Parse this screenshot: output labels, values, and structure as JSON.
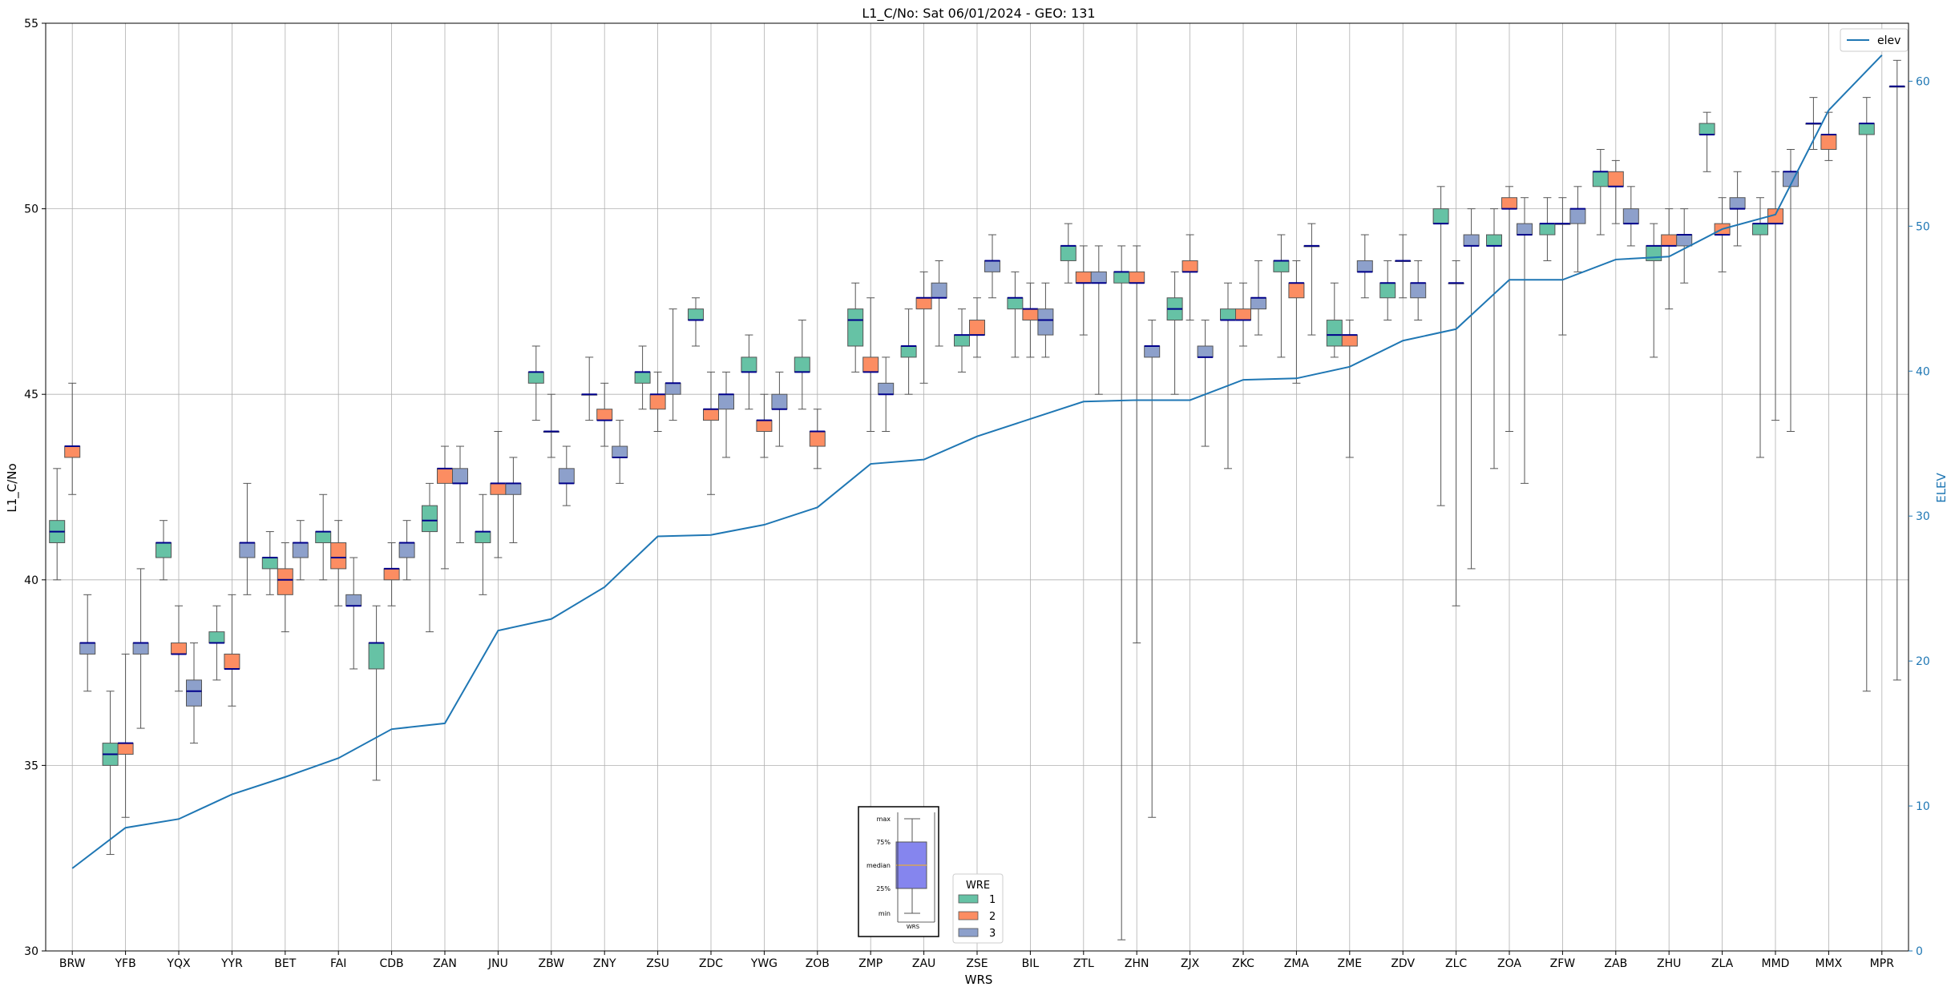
{
  "chart_data": {
    "type": "box",
    "title": "L1_C/No: Sat 06/01/2024 - GEO: 131",
    "xlabel": "WRS",
    "ylabel": "L1_C/No",
    "y2label": "ELEV",
    "ylim": [
      30,
      55
    ],
    "y2lim": [
      0,
      64
    ],
    "yticks": [
      30,
      35,
      40,
      45,
      50,
      55
    ],
    "y2ticks": [
      0,
      10,
      20,
      30,
      40,
      50,
      60
    ],
    "grid": true,
    "categories": [
      "BRW",
      "YFB",
      "YQX",
      "YYR",
      "BET",
      "FAI",
      "CDB",
      "ZAN",
      "JNU",
      "ZBW",
      "ZNY",
      "ZSU",
      "ZDC",
      "YWG",
      "ZOB",
      "ZMP",
      "ZAU",
      "ZSE",
      "BIL",
      "ZTL",
      "ZHN",
      "ZJX",
      "ZKC",
      "ZMA",
      "ZME",
      "ZDV",
      "ZLC",
      "ZOA",
      "ZFW",
      "ZAB",
      "ZHU",
      "ZLA",
      "MMD",
      "MMX",
      "MPR"
    ],
    "wre_colors": {
      "1": "#66c2a5",
      "2": "#fc8d62",
      "3": "#8da0cb"
    },
    "box_edge_color": "#555555",
    "median_color": "#00008b",
    "elev_color": "#1f77b4",
    "legend_elev": {
      "label": "elev",
      "position": "upper right"
    },
    "legend_wre": {
      "title": "WRE",
      "entries": [
        "1",
        "2",
        "3"
      ],
      "position": "lower center"
    },
    "key_box": {
      "labels": [
        "max",
        "75%",
        "median",
        "25%",
        "min"
      ],
      "xlabel": "WRS"
    },
    "boxes": [
      {
        "station": "BRW",
        "wre": "1",
        "min": 40,
        "q1": 41,
        "median": 41.3,
        "q3": 41.6,
        "max": 43
      },
      {
        "station": "BRW",
        "wre": "2",
        "min": 42.3,
        "q1": 43.3,
        "median": 43.6,
        "q3": 43.6,
        "max": 45.3
      },
      {
        "station": "BRW",
        "wre": "3",
        "min": 37,
        "q1": 38,
        "median": 38.3,
        "q3": 38.3,
        "max": 39.6
      },
      {
        "station": "YFB",
        "wre": "1",
        "min": 32.6,
        "q1": 35,
        "median": 35.3,
        "q3": 35.6,
        "max": 37
      },
      {
        "station": "YFB",
        "wre": "2",
        "min": 33.6,
        "q1": 35.3,
        "median": 35.6,
        "q3": 35.6,
        "max": 38
      },
      {
        "station": "YFB",
        "wre": "3",
        "min": 36,
        "q1": 38,
        "median": 38.3,
        "q3": 38.3,
        "max": 40.3
      },
      {
        "station": "YQX",
        "wre": "1",
        "min": 40,
        "q1": 40.6,
        "median": 41,
        "q3": 41,
        "max": 41.6
      },
      {
        "station": "YQX",
        "wre": "2",
        "min": 37,
        "q1": 38,
        "median": 38,
        "q3": 38.3,
        "max": 39.3
      },
      {
        "station": "YQX",
        "wre": "3",
        "min": 35.6,
        "q1": 36.6,
        "median": 37,
        "q3": 37.3,
        "max": 38.3
      },
      {
        "station": "YYR",
        "wre": "1",
        "min": 37.3,
        "q1": 38.3,
        "median": 38.3,
        "q3": 38.6,
        "max": 39.3
      },
      {
        "station": "YYR",
        "wre": "2",
        "min": 36.6,
        "q1": 37.6,
        "median": 37.6,
        "q3": 38,
        "max": 39.6
      },
      {
        "station": "YYR",
        "wre": "3",
        "min": 39.6,
        "q1": 40.6,
        "median": 41,
        "q3": 41,
        "max": 42.6
      },
      {
        "station": "BET",
        "wre": "1",
        "min": 39.6,
        "q1": 40.3,
        "median": 40.6,
        "q3": 40.6,
        "max": 41.3
      },
      {
        "station": "BET",
        "wre": "2",
        "min": 38.6,
        "q1": 39.6,
        "median": 40,
        "q3": 40.3,
        "max": 41
      },
      {
        "station": "BET",
        "wre": "3",
        "min": 40,
        "q1": 40.6,
        "median": 41,
        "q3": 41,
        "max": 41.6
      },
      {
        "station": "FAI",
        "wre": "1",
        "min": 40,
        "q1": 41,
        "median": 41.3,
        "q3": 41.3,
        "max": 42.3
      },
      {
        "station": "FAI",
        "wre": "2",
        "min": 39.3,
        "q1": 40.3,
        "median": 40.6,
        "q3": 41,
        "max": 41.6
      },
      {
        "station": "FAI",
        "wre": "3",
        "min": 37.6,
        "q1": 39.3,
        "median": 39.3,
        "q3": 39.6,
        "max": 40.6
      },
      {
        "station": "CDB",
        "wre": "1",
        "min": 34.6,
        "q1": 37.6,
        "median": 38.3,
        "q3": 38.3,
        "max": 39.3
      },
      {
        "station": "CDB",
        "wre": "2",
        "min": 39.3,
        "q1": 40,
        "median": 40.3,
        "q3": 40.3,
        "max": 41
      },
      {
        "station": "CDB",
        "wre": "3",
        "min": 40,
        "q1": 40.6,
        "median": 41,
        "q3": 41,
        "max": 41.6
      },
      {
        "station": "ZAN",
        "wre": "1",
        "min": 38.6,
        "q1": 41.3,
        "median": 41.6,
        "q3": 42,
        "max": 42.6
      },
      {
        "station": "ZAN",
        "wre": "2",
        "min": 40.3,
        "q1": 42.6,
        "median": 43,
        "q3": 43,
        "max": 43.6
      },
      {
        "station": "ZAN",
        "wre": "3",
        "min": 41,
        "q1": 42.6,
        "median": 42.6,
        "q3": 43,
        "max": 43.6
      },
      {
        "station": "JNU",
        "wre": "1",
        "min": 39.6,
        "q1": 41,
        "median": 41.3,
        "q3": 41.3,
        "max": 42.3
      },
      {
        "station": "JNU",
        "wre": "2",
        "min": 40.6,
        "q1": 42.3,
        "median": 42.6,
        "q3": 42.6,
        "max": 44
      },
      {
        "station": "JNU",
        "wre": "3",
        "min": 41,
        "q1": 42.3,
        "median": 42.6,
        "q3": 42.6,
        "max": 43.3
      },
      {
        "station": "ZBW",
        "wre": "1",
        "min": 44.3,
        "q1": 45.3,
        "median": 45.6,
        "q3": 45.6,
        "max": 46.3
      },
      {
        "station": "ZBW",
        "wre": "2",
        "min": 43.3,
        "q1": 44,
        "median": 44,
        "q3": 44,
        "max": 45
      },
      {
        "station": "ZBW",
        "wre": "3",
        "min": 42,
        "q1": 42.6,
        "median": 42.6,
        "q3": 43,
        "max": 43.6
      },
      {
        "station": "ZNY",
        "wre": "1",
        "min": 44.3,
        "q1": 45,
        "median": 45,
        "q3": 45,
        "max": 46
      },
      {
        "station": "ZNY",
        "wre": "2",
        "min": 43.6,
        "q1": 44.3,
        "median": 44.3,
        "q3": 44.6,
        "max": 45.3
      },
      {
        "station": "ZNY",
        "wre": "3",
        "min": 42.6,
        "q1": 43.3,
        "median": 43.3,
        "q3": 43.6,
        "max": 44.3
      },
      {
        "station": "ZSU",
        "wre": "1",
        "min": 44.6,
        "q1": 45.3,
        "median": 45.6,
        "q3": 45.6,
        "max": 46.3
      },
      {
        "station": "ZSU",
        "wre": "2",
        "min": 44,
        "q1": 44.6,
        "median": 45,
        "q3": 45,
        "max": 45.6
      },
      {
        "station": "ZSU",
        "wre": "3",
        "min": 44.3,
        "q1": 45,
        "median": 45.3,
        "q3": 45.3,
        "max": 47.3
      },
      {
        "station": "ZDC",
        "wre": "1",
        "min": 46.3,
        "q1": 47,
        "median": 47,
        "q3": 47.3,
        "max": 47.6
      },
      {
        "station": "ZDC",
        "wre": "2",
        "min": 42.3,
        "q1": 44.3,
        "median": 44.6,
        "q3": 44.6,
        "max": 45.6
      },
      {
        "station": "ZDC",
        "wre": "3",
        "min": 43.3,
        "q1": 44.6,
        "median": 45,
        "q3": 45,
        "max": 45.6
      },
      {
        "station": "YWG",
        "wre": "1",
        "min": 44.6,
        "q1": 45.6,
        "median": 45.6,
        "q3": 46,
        "max": 46.6
      },
      {
        "station": "YWG",
        "wre": "2",
        "min": 43.3,
        "q1": 44,
        "median": 44.3,
        "q3": 44.3,
        "max": 45
      },
      {
        "station": "YWG",
        "wre": "3",
        "min": 43.6,
        "q1": 44.6,
        "median": 44.6,
        "q3": 45,
        "max": 45.6
      },
      {
        "station": "ZOB",
        "wre": "1",
        "min": 44.6,
        "q1": 45.6,
        "median": 45.6,
        "q3": 46,
        "max": 47
      },
      {
        "station": "ZOB",
        "wre": "2",
        "min": 43,
        "q1": 43.6,
        "median": 44,
        "q3": 44,
        "max": 44.6
      },
      {
        "station": "ZMP",
        "wre": "1",
        "min": 45.6,
        "q1": 46.3,
        "median": 47,
        "q3": 47.3,
        "max": 48
      },
      {
        "station": "ZMP",
        "wre": "2",
        "min": 44,
        "q1": 45.6,
        "median": 45.6,
        "q3": 46,
        "max": 47.6
      },
      {
        "station": "ZMP",
        "wre": "3",
        "min": 44,
        "q1": 45,
        "median": 45,
        "q3": 45.3,
        "max": 46
      },
      {
        "station": "ZAU",
        "wre": "1",
        "min": 45,
        "q1": 46,
        "median": 46.3,
        "q3": 46.3,
        "max": 47.3
      },
      {
        "station": "ZAU",
        "wre": "2",
        "min": 45.3,
        "q1": 47.3,
        "median": 47.6,
        "q3": 47.6,
        "max": 48.3
      },
      {
        "station": "ZAU",
        "wre": "3",
        "min": 46.3,
        "q1": 47.6,
        "median": 47.6,
        "q3": 48,
        "max": 48.6
      },
      {
        "station": "ZSE",
        "wre": "1",
        "min": 45.6,
        "q1": 46.3,
        "median": 46.6,
        "q3": 46.6,
        "max": 47.3
      },
      {
        "station": "ZSE",
        "wre": "2",
        "min": 46,
        "q1": 46.6,
        "median": 46.6,
        "q3": 47,
        "max": 47.6
      },
      {
        "station": "ZSE",
        "wre": "3",
        "min": 47.6,
        "q1": 48.3,
        "median": 48.6,
        "q3": 48.6,
        "max": 49.3
      },
      {
        "station": "BIL",
        "wre": "1",
        "min": 46,
        "q1": 47.3,
        "median": 47.6,
        "q3": 47.6,
        "max": 48.3
      },
      {
        "station": "BIL",
        "wre": "2",
        "min": 46,
        "q1": 47,
        "median": 47.3,
        "q3": 47.3,
        "max": 48
      },
      {
        "station": "BIL",
        "wre": "3",
        "min": 46,
        "q1": 46.6,
        "median": 47,
        "q3": 47.3,
        "max": 48
      },
      {
        "station": "ZTL",
        "wre": "1",
        "min": 48,
        "q1": 48.6,
        "median": 49,
        "q3": 49,
        "max": 49.6
      },
      {
        "station": "ZTL",
        "wre": "2",
        "min": 46.6,
        "q1": 48,
        "median": 48,
        "q3": 48.3,
        "max": 49
      },
      {
        "station": "ZTL",
        "wre": "3",
        "min": 45,
        "q1": 48,
        "median": 48,
        "q3": 48.3,
        "max": 49
      },
      {
        "station": "ZHN",
        "wre": "1",
        "min": 30.3,
        "q1": 48,
        "median": 48.3,
        "q3": 48.3,
        "max": 49
      },
      {
        "station": "ZHN",
        "wre": "2",
        "min": 38.3,
        "q1": 48,
        "median": 48,
        "q3": 48.3,
        "max": 49
      },
      {
        "station": "ZHN",
        "wre": "3",
        "min": 33.6,
        "q1": 46,
        "median": 46.3,
        "q3": 46.3,
        "max": 47
      },
      {
        "station": "ZJX",
        "wre": "1",
        "min": 45,
        "q1": 47,
        "median": 47.3,
        "q3": 47.6,
        "max": 48.3
      },
      {
        "station": "ZJX",
        "wre": "2",
        "min": 47,
        "q1": 48.3,
        "median": 48.3,
        "q3": 48.6,
        "max": 49.3
      },
      {
        "station": "ZJX",
        "wre": "3",
        "min": 43.6,
        "q1": 46,
        "median": 46,
        "q3": 46.3,
        "max": 47
      },
      {
        "station": "ZKC",
        "wre": "1",
        "min": 43,
        "q1": 47,
        "median": 47,
        "q3": 47.3,
        "max": 48
      },
      {
        "station": "ZKC",
        "wre": "2",
        "min": 46.3,
        "q1": 47,
        "median": 47,
        "q3": 47.3,
        "max": 48
      },
      {
        "station": "ZKC",
        "wre": "3",
        "min": 46.6,
        "q1": 47.3,
        "median": 47.6,
        "q3": 47.6,
        "max": 48.6
      },
      {
        "station": "ZMA",
        "wre": "1",
        "min": 46,
        "q1": 48.3,
        "median": 48.6,
        "q3": 48.6,
        "max": 49.3
      },
      {
        "station": "ZMA",
        "wre": "2",
        "min": 45.3,
        "q1": 47.6,
        "median": 48,
        "q3": 48,
        "max": 48.6
      },
      {
        "station": "ZMA",
        "wre": "3",
        "min": 46.6,
        "q1": 49,
        "median": 49,
        "q3": 49,
        "max": 49.6
      },
      {
        "station": "ZME",
        "wre": "1",
        "min": 46,
        "q1": 46.3,
        "median": 46.6,
        "q3": 47,
        "max": 48
      },
      {
        "station": "ZME",
        "wre": "2",
        "min": 43.3,
        "q1": 46.3,
        "median": 46.6,
        "q3": 46.6,
        "max": 47
      },
      {
        "station": "ZME",
        "wre": "3",
        "min": 47.6,
        "q1": 48.3,
        "median": 48.3,
        "q3": 48.6,
        "max": 49.3
      },
      {
        "station": "ZDV",
        "wre": "1",
        "min": 47,
        "q1": 47.6,
        "median": 48,
        "q3": 48,
        "max": 48.6
      },
      {
        "station": "ZDV",
        "wre": "2",
        "min": 47.6,
        "q1": 48.6,
        "median": 48.6,
        "q3": 48.6,
        "max": 49.3
      },
      {
        "station": "ZDV",
        "wre": "3",
        "min": 47,
        "q1": 47.6,
        "median": 48,
        "q3": 48,
        "max": 48.6
      },
      {
        "station": "ZLC",
        "wre": "1",
        "min": 42,
        "q1": 49.6,
        "median": 49.6,
        "q3": 50,
        "max": 50.6
      },
      {
        "station": "ZLC",
        "wre": "2",
        "min": 39.3,
        "q1": 48,
        "median": 48,
        "q3": 48,
        "max": 48.6
      },
      {
        "station": "ZLC",
        "wre": "3",
        "min": 40.3,
        "q1": 49,
        "median": 49,
        "q3": 49.3,
        "max": 50
      },
      {
        "station": "ZOA",
        "wre": "1",
        "min": 43,
        "q1": 49,
        "median": 49,
        "q3": 49.3,
        "max": 50
      },
      {
        "station": "ZOA",
        "wre": "2",
        "min": 44,
        "q1": 50,
        "median": 50,
        "q3": 50.3,
        "max": 50.6
      },
      {
        "station": "ZOA",
        "wre": "3",
        "min": 42.6,
        "q1": 49.3,
        "median": 49.3,
        "q3": 49.6,
        "max": 50.3
      },
      {
        "station": "ZFW",
        "wre": "1",
        "min": 48.6,
        "q1": 49.3,
        "median": 49.6,
        "q3": 49.6,
        "max": 50.3
      },
      {
        "station": "ZFW",
        "wre": "2",
        "min": 46.6,
        "q1": 49.6,
        "median": 49.6,
        "q3": 49.6,
        "max": 50.3
      },
      {
        "station": "ZFW",
        "wre": "3",
        "min": 48.3,
        "q1": 49.6,
        "median": 50,
        "q3": 50,
        "max": 50.6
      },
      {
        "station": "ZAB",
        "wre": "1",
        "min": 49.3,
        "q1": 50.6,
        "median": 51,
        "q3": 51,
        "max": 51.6
      },
      {
        "station": "ZAB",
        "wre": "2",
        "min": 49.6,
        "q1": 50.6,
        "median": 50.6,
        "q3": 51,
        "max": 51.3
      },
      {
        "station": "ZAB",
        "wre": "3",
        "min": 49,
        "q1": 49.6,
        "median": 49.6,
        "q3": 50,
        "max": 50.6
      },
      {
        "station": "ZHU",
        "wre": "1",
        "min": 46,
        "q1": 48.6,
        "median": 49,
        "q3": 49,
        "max": 49.6
      },
      {
        "station": "ZHU",
        "wre": "2",
        "min": 47.3,
        "q1": 49,
        "median": 49,
        "q3": 49.3,
        "max": 50
      },
      {
        "station": "ZHU",
        "wre": "3",
        "min": 48,
        "q1": 49,
        "median": 49.3,
        "q3": 49.3,
        "max": 50
      },
      {
        "station": "ZLA",
        "wre": "1",
        "min": 51,
        "q1": 52,
        "median": 52,
        "q3": 52.3,
        "max": 52.6
      },
      {
        "station": "ZLA",
        "wre": "2",
        "min": 48.3,
        "q1": 49.3,
        "median": 49.3,
        "q3": 49.6,
        "max": 50.3
      },
      {
        "station": "ZLA",
        "wre": "3",
        "min": 49,
        "q1": 50,
        "median": 50,
        "q3": 50.3,
        "max": 51
      },
      {
        "station": "MMD",
        "wre": "1",
        "min": 43.3,
        "q1": 49.3,
        "median": 49.6,
        "q3": 49.6,
        "max": 50.3
      },
      {
        "station": "MMD",
        "wre": "2",
        "min": 44.3,
        "q1": 49.6,
        "median": 49.6,
        "q3": 50,
        "max": 51
      },
      {
        "station": "MMD",
        "wre": "3",
        "min": 44,
        "q1": 50.6,
        "median": 51,
        "q3": 51,
        "max": 51.6
      },
      {
        "station": "MMX",
        "wre": "1",
        "min": 51.6,
        "q1": 52.3,
        "median": 52.3,
        "q3": 52.3,
        "max": 53
      },
      {
        "station": "MMX",
        "wre": "2",
        "min": 51.3,
        "q1": 51.6,
        "median": 52,
        "q3": 52,
        "max": 52.6
      },
      {
        "station": "MPR",
        "wre": "1",
        "min": 37,
        "q1": 52,
        "median": 52.3,
        "q3": 52.3,
        "max": 53
      },
      {
        "station": "MPR",
        "wre": "3",
        "min": 37.3,
        "q1": 53.3,
        "median": 53.3,
        "q3": 53.3,
        "max": 54
      }
    ],
    "elev_series": {
      "name": "elev",
      "x": [
        "BRW",
        "YFB",
        "YQX",
        "YYR",
        "BET",
        "FAI",
        "CDB",
        "ZAN",
        "JNU",
        "ZBW",
        "ZNY",
        "ZSU",
        "ZDC",
        "YWG",
        "ZOB",
        "ZMP",
        "ZAU",
        "ZSE",
        "BIL",
        "ZTL",
        "ZHN",
        "ZJX",
        "ZKC",
        "ZMA",
        "ZME",
        "ZDV",
        "ZLC",
        "ZOA",
        "ZFW",
        "ZAB",
        "ZHU",
        "ZLA",
        "MMD",
        "MMX",
        "MPR"
      ],
      "values": [
        5.7,
        8.5,
        9.1,
        10.8,
        12.0,
        13.3,
        15.3,
        15.7,
        22.1,
        22.9,
        25.1,
        28.6,
        28.7,
        29.4,
        30.6,
        33.6,
        33.9,
        35.5,
        36.7,
        37.9,
        38.0,
        38.0,
        39.4,
        39.5,
        40.3,
        42.1,
        42.9,
        46.3,
        46.3,
        47.7,
        47.9,
        49.8,
        50.8,
        58.0,
        61.8
      ]
    }
  }
}
